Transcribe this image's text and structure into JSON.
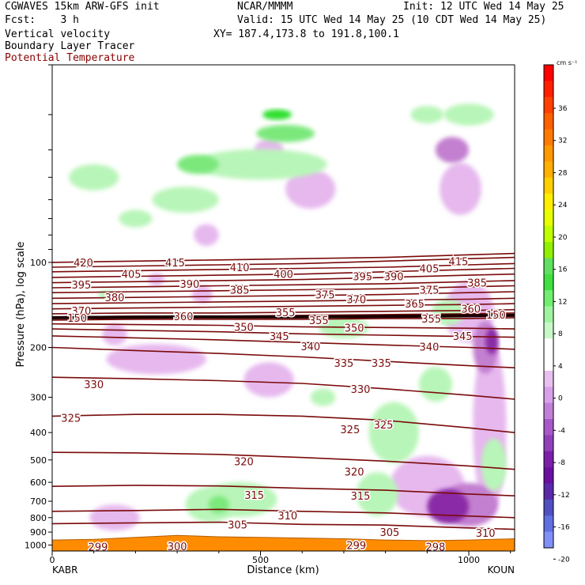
{
  "header": {
    "model": "CGWAVES 15km ARW-GFS init",
    "fcst": "Fcst:    3 h",
    "field1": "Vertical velocity",
    "field2": "Boundary Layer Tracer",
    "field3": "Potential Temperature",
    "org": "NCAR/MMMM",
    "init": "Init: 12 UTC Wed 14 May 25",
    "valid": "Valid: 15 UTC Wed 14 May 25 (10 CDT Wed 14 May 25)",
    "xy": "XY= 187.4,173.8 to 191.8,100.1"
  },
  "colors": {
    "theta": "#7a0a0a",
    "tropopause": "#1a0000",
    "green_light": "#b8f5b8",
    "green_mid": "#7ce87c",
    "green_dark": "#2ee02e",
    "purple_light": "#e6b8ee",
    "purple_mid": "#c37fd0",
    "purple_dark": "#8a2aa6",
    "terrain": "#ff8c00"
  },
  "chart_data": {
    "type": "contour",
    "xlabel": "Distance (km)",
    "ylabel": "Pressure (hPa), log scale",
    "xlim": [
      0,
      1110
    ],
    "ylim": [
      1050,
      20
    ],
    "y_scale": "log",
    "x_ticks": [
      0,
      500,
      1000
    ],
    "y_ticks": [
      100,
      200,
      300,
      400,
      500,
      600,
      700,
      800,
      900,
      1000
    ],
    "y_ticks_unlabeled": [
      20,
      30,
      40,
      50,
      60,
      70,
      80,
      90
    ],
    "end_labels": [
      "KABR",
      "KOUN"
    ],
    "colorbar": {
      "units": "cm s⁻¹",
      "labels": [
        36,
        32,
        28,
        24,
        20,
        16,
        12,
        8,
        4,
        0,
        -4,
        -8,
        -12,
        -16,
        -20
      ],
      "colors": [
        "#ff0000",
        "#ff2000",
        "#ff4000",
        "#ff6000",
        "#ff7a00",
        "#ff9900",
        "#ffb000",
        "#ffd000",
        "#ffee00",
        "#e8ff00",
        "#c0ff00",
        "#90f000",
        "#60e060",
        "#40e040",
        "#70ee70",
        "#a0f4a0",
        "#c8f8c8",
        "#ffffff",
        "#ffffff",
        "#e8c0f0",
        "#d8a0e8",
        "#c080d8",
        "#a858c8",
        "#9040b8",
        "#7a20a8",
        "#6a10a0",
        "#5a2aa8",
        "#5050c0",
        "#6070e0",
        "#8090f8"
      ]
    },
    "isentropes": [
      {
        "label": "420",
        "points": [
          [
            0,
            100
          ],
          [
            200,
            99
          ],
          [
            400,
            98
          ],
          [
            600,
            97
          ],
          [
            800,
            96
          ],
          [
            1000,
            94
          ],
          [
            1110,
            93
          ]
        ]
      },
      {
        "label": "415",
        "points": [
          [
            0,
            104
          ],
          [
            200,
            103
          ],
          [
            400,
            102
          ],
          [
            600,
            101
          ],
          [
            800,
            99
          ],
          [
            1000,
            97
          ],
          [
            1110,
            96
          ]
        ]
      },
      {
        "label": "410",
        "points": [
          [
            0,
            108
          ],
          [
            200,
            107
          ],
          [
            400,
            106
          ],
          [
            600,
            105
          ],
          [
            800,
            104
          ],
          [
            1000,
            102
          ],
          [
            1110,
            101
          ]
        ]
      },
      {
        "label": "405",
        "points": [
          [
            0,
            113
          ],
          [
            200,
            112
          ],
          [
            400,
            111
          ],
          [
            600,
            110
          ],
          [
            800,
            108
          ],
          [
            1000,
            106
          ],
          [
            1110,
            105
          ]
        ]
      },
      {
        "label": "400",
        "points": [
          [
            0,
            118
          ],
          [
            200,
            117
          ],
          [
            400,
            116
          ],
          [
            600,
            115
          ],
          [
            800,
            113
          ],
          [
            1000,
            111
          ],
          [
            1110,
            110
          ]
        ]
      },
      {
        "label": "395",
        "points": [
          [
            0,
            123
          ],
          [
            200,
            122
          ],
          [
            400,
            121
          ],
          [
            600,
            120
          ],
          [
            800,
            119
          ],
          [
            1000,
            117
          ],
          [
            1110,
            116
          ]
        ]
      },
      {
        "label": "390",
        "points": [
          [
            0,
            128
          ],
          [
            200,
            127
          ],
          [
            400,
            126
          ],
          [
            600,
            125
          ],
          [
            800,
            124
          ],
          [
            1000,
            122
          ],
          [
            1110,
            121
          ]
        ]
      },
      {
        "label": "385",
        "points": [
          [
            0,
            134
          ],
          [
            200,
            133
          ],
          [
            400,
            132
          ],
          [
            600,
            131
          ],
          [
            800,
            130
          ],
          [
            1000,
            128
          ],
          [
            1110,
            127
          ]
        ]
      },
      {
        "label": "380",
        "points": [
          [
            0,
            140
          ],
          [
            200,
            139
          ],
          [
            400,
            138
          ],
          [
            600,
            137
          ],
          [
            800,
            136
          ],
          [
            1000,
            135
          ],
          [
            1110,
            134
          ]
        ]
      },
      {
        "label": "375",
        "points": [
          [
            0,
            146
          ],
          [
            200,
            145
          ],
          [
            400,
            144
          ],
          [
            600,
            143
          ],
          [
            800,
            142
          ],
          [
            1000,
            141
          ],
          [
            1110,
            140
          ]
        ]
      },
      {
        "label": "370",
        "points": [
          [
            0,
            152
          ],
          [
            200,
            151
          ],
          [
            400,
            151
          ],
          [
            600,
            150
          ],
          [
            800,
            149
          ],
          [
            1000,
            148
          ],
          [
            1110,
            147
          ]
        ]
      },
      {
        "label": "365",
        "points": [
          [
            0,
            156
          ],
          [
            200,
            155
          ],
          [
            400,
            155
          ],
          [
            600,
            154
          ],
          [
            800,
            153
          ],
          [
            1000,
            152
          ],
          [
            1110,
            151
          ]
        ]
      },
      {
        "label": "360",
        "points": [
          [
            0,
            158
          ],
          [
            200,
            157
          ],
          [
            400,
            157
          ],
          [
            600,
            157
          ],
          [
            800,
            156
          ],
          [
            1000,
            155
          ],
          [
            1110,
            154
          ]
        ]
      },
      {
        "label": "355",
        "points": [
          [
            0,
            160
          ],
          [
            200,
            159
          ],
          [
            400,
            159
          ],
          [
            600,
            159
          ],
          [
            800,
            158
          ],
          [
            1000,
            158
          ],
          [
            1110,
            157
          ]
        ]
      },
      {
        "label": "350",
        "points": [
          [
            0,
            165
          ],
          [
            200,
            166
          ],
          [
            400,
            167
          ],
          [
            600,
            169
          ],
          [
            800,
            170
          ],
          [
            1000,
            171
          ],
          [
            1110,
            172
          ]
        ]
      },
      {
        "label": "345",
        "points": [
          [
            0,
            172
          ],
          [
            200,
            174
          ],
          [
            400,
            176
          ],
          [
            600,
            179
          ],
          [
            800,
            181
          ],
          [
            1000,
            183
          ],
          [
            1110,
            184
          ]
        ]
      },
      {
        "label": "340",
        "points": [
          [
            0,
            182
          ],
          [
            200,
            185
          ],
          [
            400,
            188
          ],
          [
            600,
            192
          ],
          [
            800,
            196
          ],
          [
            1000,
            200
          ],
          [
            1110,
            203
          ]
        ]
      },
      {
        "label": "335",
        "points": [
          [
            0,
            200
          ],
          [
            200,
            205
          ],
          [
            400,
            210
          ],
          [
            600,
            216
          ],
          [
            800,
            224
          ],
          [
            1000,
            232
          ],
          [
            1110,
            236
          ]
        ]
      },
      {
        "label": "330",
        "points": [
          [
            0,
            255
          ],
          [
            200,
            258
          ],
          [
            400,
            262
          ],
          [
            600,
            268
          ],
          [
            800,
            280
          ],
          [
            1000,
            295
          ],
          [
            1110,
            305
          ]
        ]
      },
      {
        "label": "325",
        "points": [
          [
            0,
            350
          ],
          [
            200,
            345
          ],
          [
            400,
            345
          ],
          [
            600,
            350
          ],
          [
            800,
            362
          ],
          [
            1000,
            385
          ],
          [
            1110,
            400
          ]
        ]
      },
      {
        "label": "320",
        "points": [
          [
            0,
            470
          ],
          [
            200,
            472
          ],
          [
            400,
            478
          ],
          [
            600,
            490
          ],
          [
            800,
            505
          ],
          [
            1000,
            525
          ],
          [
            1110,
            540
          ]
        ]
      },
      {
        "label": "315",
        "points": [
          [
            0,
            620
          ],
          [
            200,
            615
          ],
          [
            400,
            618
          ],
          [
            600,
            630
          ],
          [
            800,
            640
          ],
          [
            1000,
            660
          ],
          [
            1110,
            670
          ]
        ]
      },
      {
        "label": "310",
        "points": [
          [
            0,
            760
          ],
          [
            200,
            755
          ],
          [
            400,
            748
          ],
          [
            600,
            760
          ],
          [
            800,
            770
          ],
          [
            1000,
            790
          ],
          [
            1110,
            800
          ]
        ]
      },
      {
        "label": "305",
        "points": [
          [
            0,
            840
          ],
          [
            200,
            835
          ],
          [
            400,
            830
          ],
          [
            600,
            845
          ],
          [
            800,
            850
          ],
          [
            1000,
            870
          ],
          [
            1110,
            880
          ]
        ]
      }
    ],
    "contour_labels": [
      {
        "text": "420",
        "x": 75,
        "p": 100
      },
      {
        "text": "415",
        "x": 295,
        "p": 100
      },
      {
        "text": "415",
        "x": 975,
        "p": 99
      },
      {
        "text": "410",
        "x": 450,
        "p": 104
      },
      {
        "text": "405",
        "x": 190,
        "p": 110
      },
      {
        "text": "405",
        "x": 905,
        "p": 105
      },
      {
        "text": "400",
        "x": 555,
        "p": 110
      },
      {
        "text": "395",
        "x": 70,
        "p": 120
      },
      {
        "text": "395",
        "x": 745,
        "p": 112
      },
      {
        "text": "390",
        "x": 330,
        "p": 119
      },
      {
        "text": "390",
        "x": 820,
        "p": 112
      },
      {
        "text": "385",
        "x": 450,
        "p": 125
      },
      {
        "text": "385",
        "x": 1020,
        "p": 118
      },
      {
        "text": "380",
        "x": 150,
        "p": 133
      },
      {
        "text": "375",
        "x": 655,
        "p": 130
      },
      {
        "text": "375",
        "x": 905,
        "p": 125
      },
      {
        "text": "370",
        "x": 70,
        "p": 148
      },
      {
        "text": "370",
        "x": 730,
        "p": 135
      },
      {
        "text": "365",
        "x": 870,
        "p": 140
      },
      {
        "text": "360",
        "x": 315,
        "p": 155
      },
      {
        "text": "360",
        "x": 1005,
        "p": 146
      },
      {
        "text": "355",
        "x": 560,
        "p": 150
      },
      {
        "text": "355",
        "x": 640,
        "p": 160
      },
      {
        "text": "355",
        "x": 910,
        "p": 158
      },
      {
        "text": "350",
        "x": 460,
        "p": 169
      },
      {
        "text": "350",
        "x": 725,
        "p": 170
      },
      {
        "text": "345",
        "x": 545,
        "p": 182
      },
      {
        "text": "345",
        "x": 985,
        "p": 182
      },
      {
        "text": "340",
        "x": 620,
        "p": 198
      },
      {
        "text": "340",
        "x": 905,
        "p": 199
      },
      {
        "text": "335",
        "x": 700,
        "p": 227
      },
      {
        "text": "335",
        "x": 790,
        "p": 227
      },
      {
        "text": "330",
        "x": 100,
        "p": 270
      },
      {
        "text": "330",
        "x": 740,
        "p": 280
      },
      {
        "text": "325",
        "x": 45,
        "p": 355
      },
      {
        "text": "325",
        "x": 715,
        "p": 390
      },
      {
        "text": "325",
        "x": 795,
        "p": 375
      },
      {
        "text": "320",
        "x": 460,
        "p": 505
      },
      {
        "text": "320",
        "x": 725,
        "p": 550
      },
      {
        "text": "315",
        "x": 485,
        "p": 665
      },
      {
        "text": "315",
        "x": 740,
        "p": 670
      },
      {
        "text": "310",
        "x": 565,
        "p": 785
      },
      {
        "text": "310",
        "x": 1040,
        "p": 905
      },
      {
        "text": "305",
        "x": 445,
        "p": 845
      },
      {
        "text": "305",
        "x": 810,
        "p": 900
      },
      {
        "text": "299",
        "x": 110,
        "p": 1015
      },
      {
        "text": "300",
        "x": 300,
        "p": 1010
      },
      {
        "text": "299",
        "x": 730,
        "p": 1000
      },
      {
        "text": "298",
        "x": 920,
        "p": 1015
      },
      {
        "text": "150",
        "x": 60,
        "p": 157
      },
      {
        "text": "150",
        "x": 1065,
        "p": 153
      }
    ],
    "tropopause": [
      [
        0,
        157
      ],
      [
        300,
        156
      ],
      [
        600,
        156
      ],
      [
        900,
        155
      ],
      [
        1110,
        154
      ]
    ],
    "terrain_top_hPa": [
      [
        0,
        960
      ],
      [
        100,
        955
      ],
      [
        200,
        940
      ],
      [
        300,
        925
      ],
      [
        400,
        935
      ],
      [
        500,
        940
      ],
      [
        600,
        945
      ],
      [
        700,
        950
      ],
      [
        800,
        960
      ],
      [
        900,
        965
      ],
      [
        1000,
        960
      ],
      [
        1110,
        950
      ]
    ]
  }
}
